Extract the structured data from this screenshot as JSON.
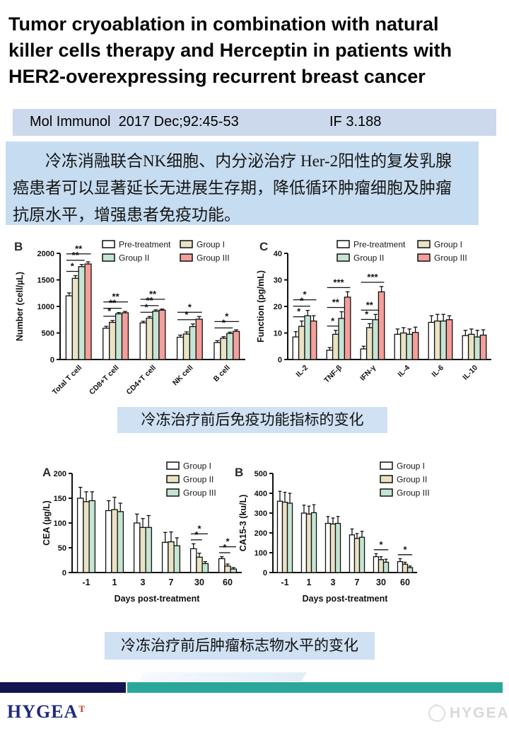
{
  "title": {
    "lines": [
      "Tumor cryoablation in combination with natural",
      "killer cells therapy and Herceptin in patients with",
      "HER2-overexpressing recurrent breast cancer"
    ]
  },
  "journal": {
    "citation": "Mol Immunol  2017 Dec;92:45-53",
    "impact_factor": "IF 3.188"
  },
  "summary": {
    "text": "冷冻消融联合NK细胞、内分泌治疗 Her-2阳性的复发乳腺癌患者可以显著延长无进展生存期，降低循环肿瘤细胞及肿瘤抗原水平，增强患者免疫功能。"
  },
  "captions": {
    "immune": "冷冻治疗前后免疫功能指标的变化",
    "tumor_markers": "冷冻治疗前后肿瘤标志物水平的变化"
  },
  "footer": {
    "brand": "HYGEA",
    "brand_mark": "T",
    "watermark": "HYGEA"
  },
  "chart_data": [
    {
      "id": "immune-cells",
      "type": "bar",
      "panel": "B",
      "ylabel": "Number (cell/µL)",
      "ylim": [
        0,
        2000
      ],
      "ytick": 500,
      "grid": false,
      "legend_position": "top-right",
      "categories": [
        "Total T cell",
        "CD8+T cell",
        "CD4+T cell",
        "NK cell",
        "B cell"
      ],
      "series": [
        {
          "name": "Pre-treatment",
          "color": "#ffffff",
          "values": [
            1200,
            590,
            690,
            420,
            320
          ],
          "errors": [
            55,
            35,
            30,
            40,
            35
          ]
        },
        {
          "name": "Group I",
          "color": "#eae2c3",
          "values": [
            1530,
            700,
            780,
            480,
            400
          ],
          "errors": [
            50,
            35,
            30,
            40,
            30
          ]
        },
        {
          "name": "Group II",
          "color": "#c4e5d3",
          "values": [
            1750,
            860,
            910,
            620,
            490
          ],
          "errors": [
            40,
            25,
            25,
            50,
            25
          ]
        },
        {
          "name": "Group III",
          "color": "#f59e9b",
          "values": [
            1800,
            880,
            930,
            760,
            530
          ],
          "errors": [
            40,
            25,
            20,
            50,
            30
          ]
        }
      ],
      "sig": [
        [
          0,
          0,
          1,
          "*"
        ],
        [
          0,
          0,
          2,
          "**"
        ],
        [
          0,
          0,
          3,
          "**"
        ],
        [
          1,
          0,
          1,
          "*"
        ],
        [
          1,
          0,
          2,
          "**"
        ],
        [
          1,
          0,
          3,
          "**"
        ],
        [
          2,
          0,
          1,
          "*"
        ],
        [
          2,
          0,
          2,
          "**"
        ],
        [
          2,
          0,
          3,
          "**"
        ],
        [
          3,
          0,
          2,
          "*"
        ],
        [
          3,
          0,
          3,
          "*"
        ],
        [
          4,
          0,
          2,
          "*"
        ],
        [
          4,
          0,
          3,
          "*"
        ]
      ]
    },
    {
      "id": "cytokines",
      "type": "bar",
      "panel": "C",
      "ylabel": "Function (pg/mL)",
      "ylim": [
        0,
        40
      ],
      "ytick": 10,
      "grid": false,
      "legend_position": "top-right",
      "categories": [
        "IL-2",
        "TNF-β",
        "IFN-γ",
        "IL-4",
        "IL-6",
        "IL-10"
      ],
      "series": [
        {
          "name": "Pre-treatment",
          "color": "#ffffff",
          "values": [
            8.5,
            3.5,
            4,
            9.5,
            14,
            9
          ],
          "errors": [
            2,
            1,
            1,
            2,
            2.5,
            2
          ]
        },
        {
          "name": "Group I",
          "color": "#eae2c3",
          "values": [
            12.5,
            9.5,
            12,
            10,
            14.5,
            9.5
          ],
          "errors": [
            2,
            1.5,
            1.5,
            2,
            2.5,
            2
          ]
        },
        {
          "name": "Group II",
          "color": "#c4e5d3",
          "values": [
            16.5,
            15.5,
            15,
            9.5,
            14.5,
            8.5
          ],
          "errors": [
            2,
            2.5,
            2,
            2,
            2.5,
            2.5
          ]
        },
        {
          "name": "Group III",
          "color": "#f59e9b",
          "values": [
            14.5,
            23.5,
            25.5,
            10.2,
            15,
            9.2
          ],
          "errors": [
            2,
            2,
            2,
            2,
            1.5,
            2
          ]
        }
      ],
      "sig": [
        [
          0,
          0,
          1,
          "*"
        ],
        [
          0,
          0,
          2,
          "*"
        ],
        [
          0,
          0,
          3,
          "*"
        ],
        [
          1,
          0,
          1,
          "*"
        ],
        [
          1,
          0,
          2,
          "**"
        ],
        [
          1,
          0,
          3,
          "***"
        ],
        [
          2,
          0,
          1,
          "*"
        ],
        [
          2,
          0,
          2,
          "**"
        ],
        [
          2,
          0,
          3,
          "***"
        ]
      ]
    },
    {
      "id": "cea",
      "type": "bar",
      "panel": "A",
      "ylabel": "CEA (µg/L)",
      "xlabel": "Days post-treatment",
      "ylim": [
        0,
        200
      ],
      "ytick": 50,
      "grid": false,
      "legend_position": "top-right",
      "categories": [
        "-1",
        "1",
        "3",
        "7",
        "30",
        "60"
      ],
      "series": [
        {
          "name": "Group I",
          "color": "#ffffff",
          "values": [
            150,
            125,
            100,
            61,
            48,
            28
          ],
          "errors": [
            22,
            20,
            18,
            20,
            10,
            4
          ]
        },
        {
          "name": "Group II",
          "color": "#eae2c3",
          "values": [
            143,
            127,
            91,
            62,
            31,
            13
          ],
          "errors": [
            20,
            25,
            18,
            20,
            8,
            4
          ]
        },
        {
          "name": "Group III",
          "color": "#c4e5d3",
          "values": [
            145,
            123,
            91,
            54,
            18,
            7
          ],
          "errors": [
            18,
            17,
            24,
            16,
            4,
            3
          ]
        }
      ],
      "sig": [
        [
          4,
          0,
          1,
          "*"
        ],
        [
          4,
          0,
          2,
          "*"
        ],
        [
          5,
          0,
          1,
          "*"
        ],
        [
          5,
          0,
          2,
          "*"
        ]
      ]
    },
    {
      "id": "ca153",
      "type": "bar",
      "panel": "B",
      "ylabel": "CA15-3 (ku/L)",
      "xlabel": "Days post-treatment",
      "ylim": [
        0,
        500
      ],
      "ytick": 100,
      "grid": false,
      "legend_position": "top-right",
      "categories": [
        "-1",
        "1",
        "3",
        "7",
        "30",
        "60"
      ],
      "series": [
        {
          "name": "Group I",
          "color": "#ffffff",
          "values": [
            360,
            300,
            248,
            190,
            80,
            55
          ],
          "errors": [
            50,
            40,
            35,
            30,
            15,
            15
          ]
        },
        {
          "name": "Group II",
          "color": "#eae2c3",
          "values": [
            355,
            295,
            245,
            172,
            65,
            42
          ],
          "errors": [
            50,
            40,
            30,
            25,
            15,
            10
          ]
        },
        {
          "name": "Group III",
          "color": "#c4e5d3",
          "values": [
            350,
            302,
            248,
            178,
            52,
            25
          ],
          "errors": [
            50,
            40,
            35,
            30,
            15,
            8
          ]
        }
      ],
      "sig": [
        [
          4,
          0,
          2,
          "*"
        ],
        [
          5,
          0,
          2,
          "*"
        ]
      ]
    }
  ]
}
